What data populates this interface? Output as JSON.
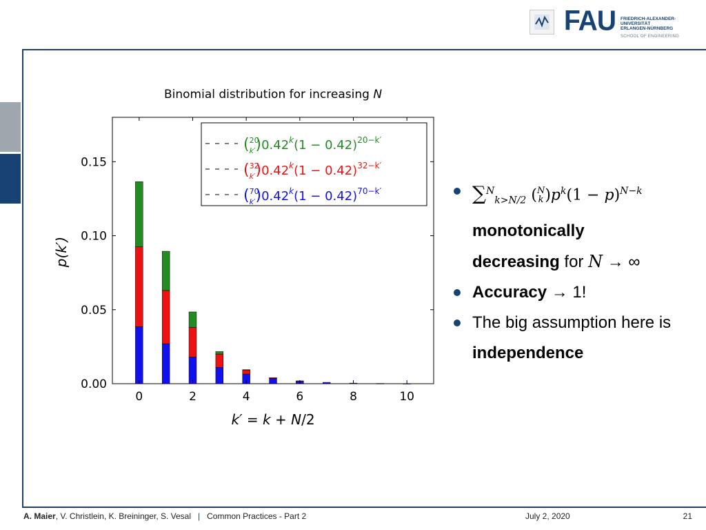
{
  "header": {
    "logo_name": "FAU",
    "university_lines": [
      "FRIEDRICH-ALEXANDER-",
      "UNIVERSITÄT",
      "ERLANGEN-NÜRNBERG"
    ],
    "school": "SCHOOL OF ENGINEERING"
  },
  "bullets": {
    "b1_line2": "monotonically",
    "b1_line3_bold": "decreasing",
    "b1_line3_rest": " for ",
    "b2_bold": "Accuracy",
    "b2_rest": " 1!",
    "b3_text": "The big assumption here is",
    "b3_bold": "independence"
  },
  "footer": {
    "author_bold": "A. Maier",
    "authors_rest": ", V. Christlein, K. Breininger, S. Vesal",
    "separator": "|",
    "course": "Common Practices - Part 2",
    "date": "July 2, 2020",
    "page": "21"
  },
  "colors": {
    "green": "#228b22",
    "red": "#ee1111",
    "blue": "#1111ee",
    "accent": "#174272"
  },
  "chart_data": {
    "type": "bar",
    "title": "Binomial distribution for increasing N",
    "xlabel": "k' = k + N/2",
    "ylabel": "p(k')",
    "x": [
      0,
      1,
      2,
      3,
      4,
      5,
      6,
      7,
      8,
      9,
      10
    ],
    "xticks": [
      "0",
      "2",
      "4",
      "6",
      "8",
      "10"
    ],
    "yticks": [
      "0.00",
      "0.05",
      "0.10",
      "0.15"
    ],
    "xlim": [
      -1,
      11
    ],
    "ylim": [
      0,
      0.18
    ],
    "stacked": true,
    "legend_position": "top-right",
    "series": [
      {
        "name": "(70 k') 0.42^k (1 − 0.42)^(70−k')",
        "color": "#1111ee",
        "values": [
          0.0385,
          0.027,
          0.018,
          0.011,
          0.0065,
          0.0035,
          0.0018,
          0.0009,
          0.0004,
          0.0002,
          0.0001
        ]
      },
      {
        "name": "(32 k') 0.42^k (1 − 0.42)^(32−k')",
        "color": "#ee1111",
        "values": [
          0.054,
          0.036,
          0.02,
          0.009,
          0.0028,
          0.0006,
          0.0001,
          0,
          0,
          0,
          0
        ]
      },
      {
        "name": "(20 k') 0.42^k (1 − 0.42)^(20−k')",
        "color": "#228b22",
        "values": [
          0.044,
          0.0265,
          0.0105,
          0.0017,
          0.0002,
          0,
          0,
          0,
          0,
          0,
          0
        ]
      }
    ],
    "legend": [
      {
        "n": "20",
        "color": "#228b22"
      },
      {
        "n": "32",
        "color": "#ee1111"
      },
      {
        "n": "70",
        "color": "#1111ee"
      }
    ]
  }
}
